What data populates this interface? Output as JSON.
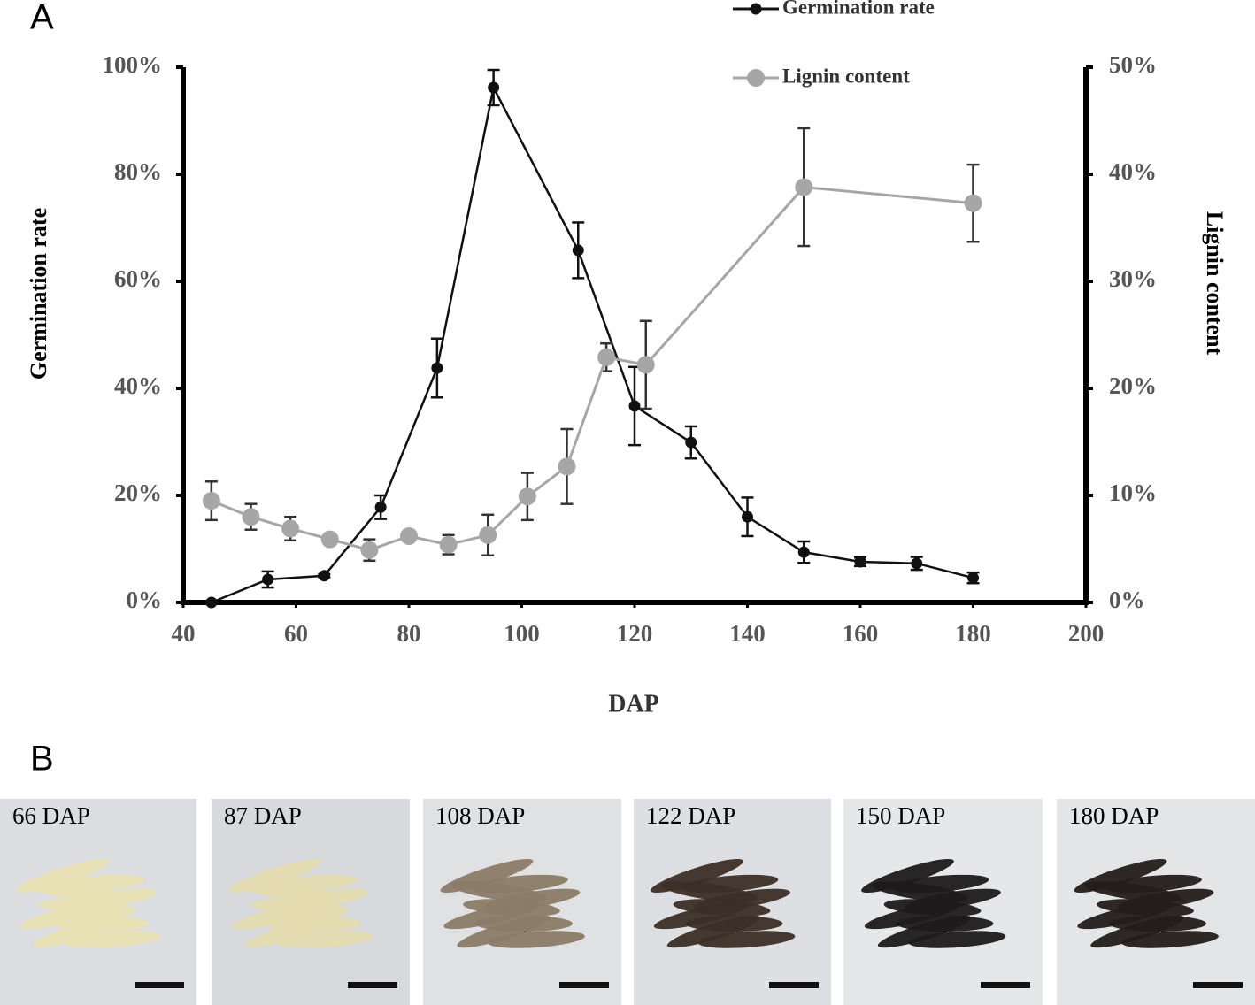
{
  "panel_labels": [
    "A",
    "B"
  ],
  "chart_data": {
    "type": "line",
    "xlabel": "DAP",
    "ylabel": "Germination rate",
    "y2label": "Lignin content",
    "xlim": [
      40,
      200
    ],
    "xticks": [
      40,
      60,
      80,
      100,
      120,
      140,
      160,
      180,
      200
    ],
    "ylim": [
      0,
      100
    ],
    "yticks": [
      {
        "value": 0,
        "label": "0%"
      },
      {
        "value": 20,
        "label": "20%"
      },
      {
        "value": 40,
        "label": "40%"
      },
      {
        "value": 60,
        "label": "60%"
      },
      {
        "value": 80,
        "label": "80%"
      },
      {
        "value": 100,
        "label": "100%"
      }
    ],
    "y2lim": [
      0,
      50
    ],
    "y2ticks": [
      {
        "value": 0,
        "label": "0%"
      },
      {
        "value": 10,
        "label": "10%"
      },
      {
        "value": 20,
        "label": "20%"
      },
      {
        "value": 30,
        "label": "30%"
      },
      {
        "value": 40,
        "label": "40%"
      },
      {
        "value": 50,
        "label": "50%"
      }
    ],
    "legend": "top",
    "series": [
      {
        "name": "Germination rate",
        "color": "#111111",
        "error_color": "#111111",
        "x": [
          45,
          55,
          65,
          75,
          85,
          95,
          110,
          120,
          130,
          140,
          150,
          160,
          170,
          180
        ],
        "values": [
          0,
          4.3,
          5.0,
          17.8,
          43.8,
          96.2,
          65.8,
          36.7,
          29.9,
          16.0,
          9.4,
          7.6,
          7.3,
          4.6
        ],
        "errors": [
          0,
          1.5,
          0.3,
          2.2,
          5.5,
          3.3,
          5.2,
          7.3,
          3.0,
          3.6,
          2.0,
          0.8,
          1.2,
          1.0
        ]
      },
      {
        "name": "Lignin content",
        "color": "#a6a6a6",
        "error_color": "#333333",
        "axis": "y2",
        "x": [
          45,
          52,
          59,
          66,
          73,
          80,
          87,
          94,
          101,
          108,
          115,
          122,
          150,
          180
        ],
        "values": [
          9.5,
          8.0,
          6.9,
          5.9,
          4.9,
          6.2,
          5.4,
          6.3,
          9.9,
          12.7,
          22.9,
          22.2,
          38.8,
          37.3
        ],
        "errors": [
          1.8,
          1.2,
          1.1,
          0.3,
          1.0,
          0.4,
          0.9,
          1.9,
          2.2,
          3.5,
          1.3,
          4.1,
          5.5,
          3.6
        ]
      }
    ]
  },
  "photo_captions": [
    "66 DAP",
    "87 DAP",
    "108 DAP",
    "122 DAP",
    "150 DAP",
    "180 DAP"
  ]
}
